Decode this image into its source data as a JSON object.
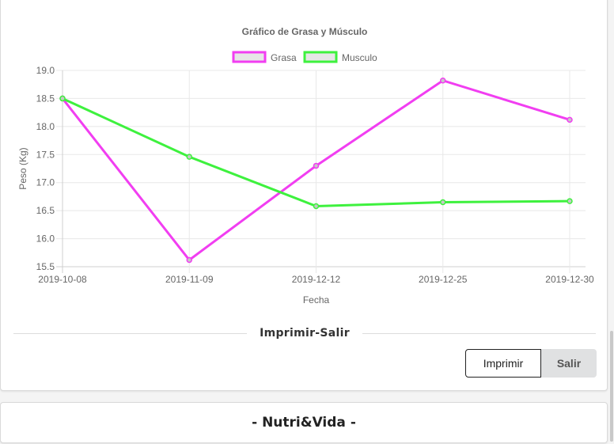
{
  "chart_data": {
    "type": "line",
    "title": "Gráfico de Grasa y Músculo",
    "xlabel": "Fecha",
    "ylabel": "Peso (Kg)",
    "categories": [
      "2019-10-08",
      "2019-11-09",
      "2019-12-12",
      "2019-12-25",
      "2019-12-30"
    ],
    "ylim": [
      15.5,
      19.0
    ],
    "yticks": [
      "19.0",
      "18.5",
      "18.0",
      "17.5",
      "17.0",
      "16.5",
      "16.0",
      "15.5"
    ],
    "grid": true,
    "legend_position": "top",
    "series": [
      {
        "name": "Grasa",
        "color": "#f13ef1",
        "values": [
          18.5,
          15.62,
          17.3,
          18.82,
          18.12
        ]
      },
      {
        "name": "Musculo",
        "color": "#3ef13e",
        "values": [
          18.5,
          17.46,
          16.58,
          16.65,
          16.67
        ]
      }
    ]
  },
  "section": {
    "title": "Imprimir-Salir"
  },
  "buttons": {
    "print_label": "Imprimir",
    "exit_label": "Salir"
  },
  "footer": {
    "title": "- Nutri&Vida -"
  }
}
